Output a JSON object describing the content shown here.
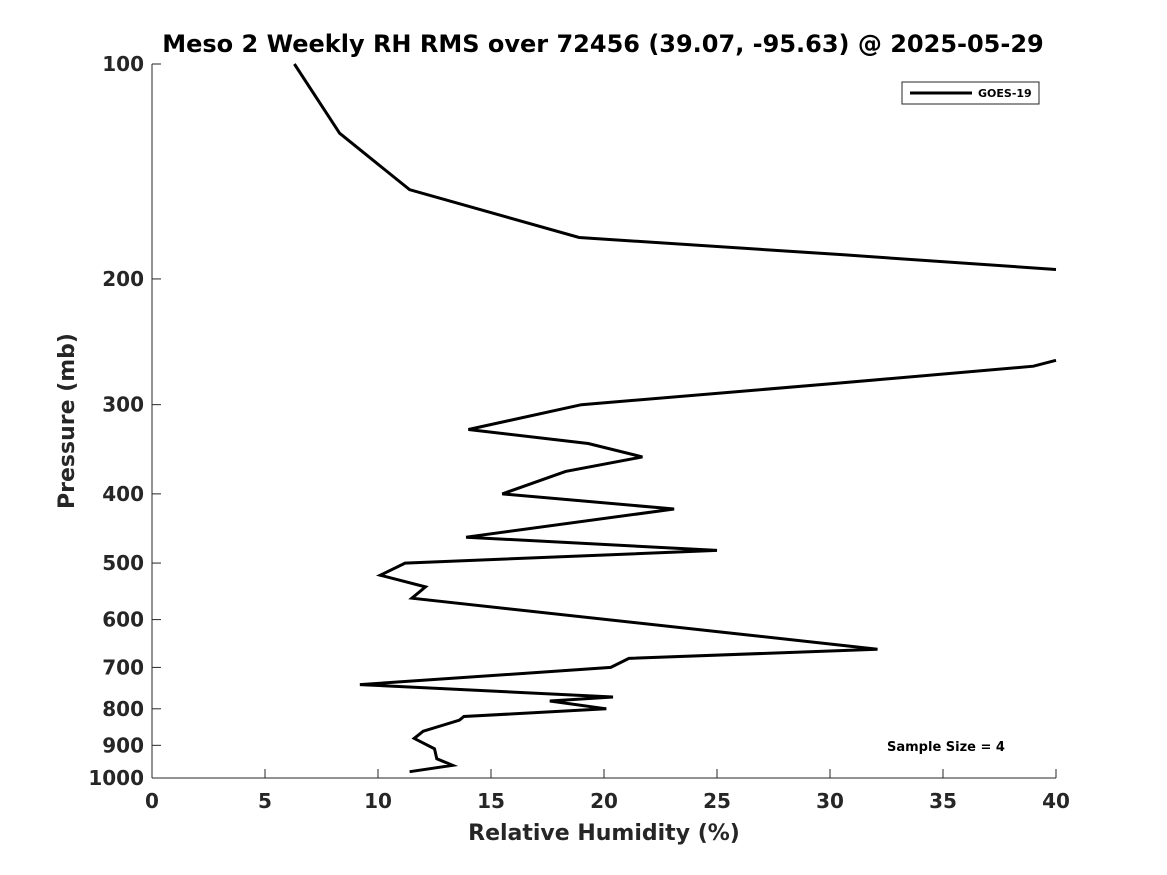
{
  "chart_data": {
    "type": "line",
    "title": "Meso 2 Weekly RH RMS over 72456 (39.07, -95.63) @ 2025-05-29",
    "xlabel": "Relative Humidity (%)",
    "ylabel": "Pressure (mb)",
    "xlim": [
      0,
      40
    ],
    "ylim": [
      100,
      1000
    ],
    "yscale": "log",
    "y_reversed": true,
    "x_ticks": [
      0,
      5,
      10,
      15,
      20,
      25,
      30,
      35,
      40
    ],
    "x_tick_labels": [
      "0",
      "5",
      "10",
      "15",
      "20",
      "25",
      "30",
      "35",
      "40"
    ],
    "y_ticks": [
      100,
      200,
      300,
      400,
      500,
      600,
      700,
      800,
      900,
      1000
    ],
    "y_tick_labels": [
      "100",
      "200",
      "300",
      "400",
      "500",
      "600",
      "700",
      "800",
      "900",
      "1000"
    ],
    "grid": false,
    "legend_position": "top-right",
    "annotation": "Sample Size = 4",
    "series": [
      {
        "name": "GOES-19",
        "color": "#000000",
        "segments": [
          {
            "x": [
              6.3,
              8.3,
              11.4,
              18.9,
              30.6,
              40.0
            ],
            "y": [
              100,
              125,
              150,
              175,
              185,
              194
            ]
          },
          {
            "x": [
              40.0,
              39.0,
              30.3,
              19.0,
              14.0,
              19.3,
              21.7,
              18.3,
              15.5,
              23.1,
              13.9,
              25.0,
              11.2,
              10.1,
              12.1,
              11.5,
              32.1,
              21.1,
              20.3,
              9.2,
              20.4,
              17.6,
              20.1,
              13.8,
              13.6,
              12.0,
              11.6,
              12.5,
              12.6,
              13.3,
              11.4
            ],
            "y": [
              260,
              265,
              280,
              300,
              325,
              340,
              355,
              372,
              400,
              420,
              460,
              480,
              500,
              520,
              540,
              560,
              660,
              680,
              700,
              740,
              770,
              780,
              800,
              820,
              830,
              860,
              880,
              910,
              940,
              960,
              980
            ]
          }
        ]
      }
    ]
  }
}
